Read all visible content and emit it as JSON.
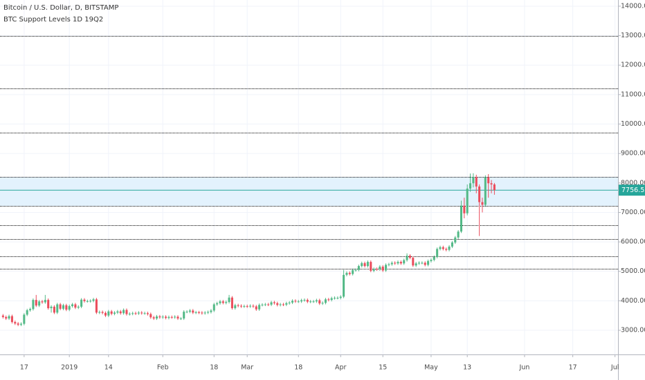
{
  "chart_data": {
    "type": "candlestick",
    "title": "Bitcoin / U.S. Dollar, D, BITSTAMP",
    "subtitle": "BTC Support Levels 1D 19Q2",
    "x": [
      "2018-12-10",
      "2018-12-11",
      "2018-12-12",
      "2018-12-13",
      "2018-12-14",
      "2018-12-15",
      "2018-12-16",
      "2018-12-17",
      "2018-12-18",
      "2018-12-19",
      "2018-12-20",
      "2018-12-21",
      "2018-12-22",
      "2018-12-23",
      "2018-12-24",
      "2018-12-25",
      "2018-12-26",
      "2018-12-27",
      "2018-12-28",
      "2018-12-29",
      "2018-12-30",
      "2018-12-31",
      "2019-01-01",
      "2019-01-02",
      "2019-01-03",
      "2019-01-04",
      "2019-01-05",
      "2019-01-06",
      "2019-01-07",
      "2019-01-08",
      "2019-01-09",
      "2019-01-10",
      "2019-01-11",
      "2019-01-12",
      "2019-01-13",
      "2019-01-14",
      "2019-01-15",
      "2019-01-16",
      "2019-01-17",
      "2019-01-18",
      "2019-01-19",
      "2019-01-20",
      "2019-01-21",
      "2019-01-22",
      "2019-01-23",
      "2019-01-24",
      "2019-01-25",
      "2019-01-26",
      "2019-01-27",
      "2019-01-28",
      "2019-01-29",
      "2019-01-30",
      "2019-01-31",
      "2019-02-01",
      "2019-02-02",
      "2019-02-03",
      "2019-02-04",
      "2019-02-05",
      "2019-02-06",
      "2019-02-07",
      "2019-02-08",
      "2019-02-09",
      "2019-02-10",
      "2019-02-11",
      "2019-02-12",
      "2019-02-13",
      "2019-02-14",
      "2019-02-15",
      "2019-02-16",
      "2019-02-17",
      "2019-02-18",
      "2019-02-19",
      "2019-02-20",
      "2019-02-21",
      "2019-02-22",
      "2019-02-23",
      "2019-02-24",
      "2019-02-25",
      "2019-02-26",
      "2019-02-27",
      "2019-02-28",
      "2019-03-01",
      "2019-03-02",
      "2019-03-03",
      "2019-03-04",
      "2019-03-05",
      "2019-03-06",
      "2019-03-07",
      "2019-03-08",
      "2019-03-09",
      "2019-03-10",
      "2019-03-11",
      "2019-03-12",
      "2019-03-13",
      "2019-03-14",
      "2019-03-15",
      "2019-03-16",
      "2019-03-17",
      "2019-03-18",
      "2019-03-19",
      "2019-03-20",
      "2019-03-21",
      "2019-03-22",
      "2019-03-23",
      "2019-03-24",
      "2019-03-25",
      "2019-03-26",
      "2019-03-27",
      "2019-03-28",
      "2019-03-29",
      "2019-03-30",
      "2019-03-31",
      "2019-04-01",
      "2019-04-02",
      "2019-04-03",
      "2019-04-04",
      "2019-04-05",
      "2019-04-06",
      "2019-04-07",
      "2019-04-08",
      "2019-04-09",
      "2019-04-10",
      "2019-04-11",
      "2019-04-12",
      "2019-04-13",
      "2019-04-14",
      "2019-04-15",
      "2019-04-16",
      "2019-04-17",
      "2019-04-18",
      "2019-04-19",
      "2019-04-20",
      "2019-04-21",
      "2019-04-22",
      "2019-04-23",
      "2019-04-24",
      "2019-04-25",
      "2019-04-26",
      "2019-04-27",
      "2019-04-28",
      "2019-04-29",
      "2019-04-30",
      "2019-05-01",
      "2019-05-02",
      "2019-05-03",
      "2019-05-04",
      "2019-05-05",
      "2019-05-06",
      "2019-05-07",
      "2019-05-08",
      "2019-05-09",
      "2019-05-10",
      "2019-05-11",
      "2019-05-12",
      "2019-05-13",
      "2019-05-14",
      "2019-05-15",
      "2019-05-16",
      "2019-05-17",
      "2019-05-18",
      "2019-05-19",
      "2019-05-20",
      "2019-05-21",
      "2019-05-22"
    ],
    "open": [
      3500,
      3450,
      3400,
      3480,
      3280,
      3230,
      3190,
      3220,
      3530,
      3680,
      3720,
      4030,
      3840,
      3980,
      3950,
      4030,
      3750,
      3800,
      3600,
      3880,
      3730,
      3850,
      3700,
      3820,
      3880,
      3770,
      3800,
      4040,
      3990,
      3990,
      4000,
      4050,
      3600,
      3620,
      3590,
      3500,
      3640,
      3560,
      3600,
      3640,
      3580,
      3690,
      3550,
      3560,
      3580,
      3570,
      3600,
      3580,
      3580,
      3550,
      3440,
      3400,
      3470,
      3440,
      3460,
      3420,
      3450,
      3440,
      3460,
      3400,
      3400,
      3630,
      3630,
      3670,
      3600,
      3610,
      3600,
      3580,
      3600,
      3620,
      3670,
      3880,
      3920,
      3980,
      3930,
      3960,
      4110,
      3750,
      3850,
      3830,
      3810,
      3820,
      3810,
      3830,
      3810,
      3710,
      3860,
      3870,
      3880,
      3870,
      3950,
      3920,
      3860,
      3880,
      3870,
      3920,
      3940,
      4000,
      3980,
      3980,
      4020,
      4030,
      3970,
      3980,
      3980,
      4020,
      3910,
      3930,
      4050,
      4030,
      4090,
      4100,
      4100,
      4140,
      4880,
      4950,
      4910,
      5040,
      5050,
      5180,
      5280,
      5180,
      5320,
      5020,
      5080,
      5070,
      5160,
      5030,
      5220,
      5240,
      5290,
      5270,
      5320,
      5270,
      5380,
      5530,
      5460,
      5200,
      5270,
      5290,
      5290,
      5220,
      5350,
      5390,
      5490,
      5760,
      5820,
      5760,
      5730,
      5840,
      5980,
      6150,
      6350,
      7230,
      6970,
      7810,
      7990,
      8200,
      7880,
      7350,
      7260,
      8190,
      7990,
      7950
    ],
    "high": [
      3550,
      3500,
      3530,
      3530,
      3330,
      3280,
      3270,
      3580,
      3730,
      3770,
      4080,
      4200,
      4030,
      4030,
      4200,
      4080,
      3850,
      3850,
      3930,
      3930,
      3900,
      3900,
      3870,
      3930,
      3930,
      3850,
      4090,
      4090,
      4040,
      4050,
      4100,
      4100,
      3670,
      3670,
      3640,
      3690,
      3690,
      3650,
      3690,
      3690,
      3740,
      3740,
      3610,
      3630,
      3630,
      3650,
      3650,
      3630,
      3630,
      3600,
      3490,
      3520,
      3520,
      3510,
      3510,
      3500,
      3500,
      3510,
      3510,
      3450,
      3680,
      3680,
      3720,
      3720,
      3660,
      3660,
      3650,
      3650,
      3670,
      3720,
      3930,
      3970,
      4030,
      4030,
      4010,
      4200,
      4160,
      3900,
      3900,
      3880,
      3870,
      3870,
      3880,
      3880,
      3860,
      3910,
      3920,
      3930,
      3930,
      4000,
      4000,
      3970,
      3930,
      3930,
      3970,
      3990,
      4050,
      4050,
      4030,
      4070,
      4080,
      4080,
      4030,
      4030,
      4070,
      4070,
      3980,
      4100,
      4100,
      4140,
      4150,
      4150,
      4190,
      5050,
      5000,
      5000,
      5090,
      5100,
      5230,
      5330,
      5330,
      5370,
      5370,
      5130,
      5130,
      5210,
      5210,
      5270,
      5290,
      5340,
      5340,
      5370,
      5370,
      5430,
      5610,
      5580,
      5510,
      5320,
      5340,
      5340,
      5340,
      5400,
      5440,
      5540,
      5810,
      5870,
      5870,
      5810,
      5890,
      6030,
      6200,
      6400,
      7400,
      7500,
      7950,
      8320,
      8330,
      8280,
      7950,
      7500,
      8260,
      8300,
      8100,
      8000
    ],
    "low": [
      3400,
      3350,
      3350,
      3230,
      3180,
      3140,
      3140,
      3170,
      3480,
      3630,
      3670,
      3790,
      3790,
      3900,
      3900,
      3700,
      3600,
      3550,
      3550,
      3680,
      3680,
      3650,
      3650,
      3770,
      3720,
      3720,
      3750,
      3940,
      3940,
      3940,
      3950,
      3550,
      3550,
      3540,
      3450,
      3450,
      3510,
      3510,
      3550,
      3530,
      3530,
      3500,
      3500,
      3510,
      3520,
      3520,
      3530,
      3530,
      3500,
      3390,
      3350,
      3350,
      3390,
      3390,
      3370,
      3370,
      3390,
      3390,
      3350,
      3350,
      3350,
      3580,
      3580,
      3550,
      3550,
      3550,
      3530,
      3530,
      3550,
      3570,
      3620,
      3830,
      3870,
      3880,
      3880,
      3910,
      3700,
      3700,
      3780,
      3760,
      3760,
      3760,
      3760,
      3760,
      3660,
      3660,
      3810,
      3820,
      3820,
      3820,
      3870,
      3810,
      3810,
      3820,
      3820,
      3870,
      3890,
      3930,
      3930,
      3930,
      3970,
      3920,
      3920,
      3930,
      3930,
      3860,
      3860,
      3880,
      3980,
      3980,
      4040,
      4050,
      4050,
      4090,
      4830,
      4860,
      4860,
      4990,
      5000,
      5130,
      5130,
      5130,
      4970,
      4970,
      5020,
      5020,
      4980,
      4980,
      5170,
      5190,
      5220,
      5220,
      5220,
      5220,
      5330,
      5410,
      5150,
      5150,
      5220,
      5240,
      5170,
      5170,
      5300,
      5340,
      5440,
      5710,
      5710,
      5680,
      5680,
      5790,
      5930,
      6100,
      6300,
      6800,
      6900,
      7700,
      7850,
      7650,
      6200,
      7000,
      7200,
      7500,
      7650,
      7600
    ],
    "close": [
      3450,
      3400,
      3480,
      3280,
      3230,
      3190,
      3220,
      3530,
      3680,
      3720,
      4030,
      3840,
      3980,
      3950,
      4030,
      3750,
      3800,
      3600,
      3880,
      3730,
      3850,
      3700,
      3820,
      3880,
      3770,
      3800,
      4040,
      3990,
      3990,
      4000,
      4050,
      3600,
      3620,
      3590,
      3500,
      3640,
      3560,
      3600,
      3640,
      3580,
      3690,
      3550,
      3560,
      3580,
      3570,
      3600,
      3580,
      3580,
      3550,
      3440,
      3400,
      3470,
      3440,
      3460,
      3420,
      3450,
      3440,
      3460,
      3400,
      3400,
      3630,
      3630,
      3670,
      3600,
      3610,
      3600,
      3580,
      3600,
      3620,
      3670,
      3880,
      3920,
      3980,
      3930,
      3960,
      4110,
      3750,
      3850,
      3830,
      3810,
      3820,
      3810,
      3830,
      3810,
      3710,
      3860,
      3870,
      3880,
      3870,
      3950,
      3920,
      3860,
      3880,
      3870,
      3920,
      3940,
      4000,
      3980,
      3980,
      4020,
      4030,
      3970,
      3980,
      3980,
      4020,
      3910,
      3930,
      4050,
      4030,
      4090,
      4100,
      4100,
      4140,
      4880,
      4950,
      4910,
      5040,
      5050,
      5180,
      5280,
      5180,
      5320,
      5020,
      5080,
      5070,
      5160,
      5030,
      5220,
      5240,
      5290,
      5270,
      5320,
      5270,
      5380,
      5530,
      5460,
      5200,
      5270,
      5290,
      5290,
      5220,
      5350,
      5390,
      5490,
      5760,
      5820,
      5760,
      5730,
      5840,
      5980,
      6150,
      6350,
      7230,
      6970,
      7810,
      7990,
      8200,
      7880,
      7350,
      7260,
      8190,
      7990,
      7950,
      7756.52
    ],
    "up_color": "#53b987",
    "down_color": "#eb4d5c",
    "levels": [
      13000,
      11200,
      9700,
      8200,
      7220,
      6570,
      6100,
      5510,
      5090
    ],
    "level_color": "#000000",
    "band": [
      7220,
      8200
    ],
    "band_color": "#e3f2fd",
    "last_price": 7756.52,
    "last_price_color": "#26a69a",
    "xlim": [
      "2018-12-09",
      "2019-07-02"
    ],
    "xticks": [
      {
        "value": "2018-12-17",
        "label": "17"
      },
      {
        "value": "2019-01-01",
        "label": "2019"
      },
      {
        "value": "2019-01-14",
        "label": "14"
      },
      {
        "value": "2019-02-01",
        "label": "Feb"
      },
      {
        "value": "2019-02-18",
        "label": "18"
      },
      {
        "value": "2019-03-01",
        "label": "Mar"
      },
      {
        "value": "2019-03-18",
        "label": "18"
      },
      {
        "value": "2019-04-01",
        "label": "Apr"
      },
      {
        "value": "2019-04-15",
        "label": "15"
      },
      {
        "value": "2019-05-01",
        "label": "May"
      },
      {
        "value": "2019-05-13",
        "label": "13"
      },
      {
        "value": "2019-06-01",
        "label": "Jun"
      },
      {
        "value": "2019-06-17",
        "label": "17"
      },
      {
        "value": "2019-07-01",
        "label": "Jul"
      }
    ],
    "ylim": [
      2180,
      14210
    ],
    "yticks": [
      {
        "value": 3000,
        "label": "3000.00"
      },
      {
        "value": 4000,
        "label": "4000.00"
      },
      {
        "value": 5000,
        "label": "5000.00"
      },
      {
        "value": 6000,
        "label": "6000.00"
      },
      {
        "value": 7000,
        "label": "7000.00"
      },
      {
        "value": 8000,
        "label": "8000.00"
      },
      {
        "value": 9000,
        "label": "9000.00"
      },
      {
        "value": 10000,
        "label": "10000.00"
      },
      {
        "value": 11000,
        "label": "11000.00"
      },
      {
        "value": 12000,
        "label": "12000.00"
      },
      {
        "value": 13000,
        "label": "13000.00"
      },
      {
        "value": 14000,
        "label": "14000.00"
      }
    ],
    "grid": true
  }
}
